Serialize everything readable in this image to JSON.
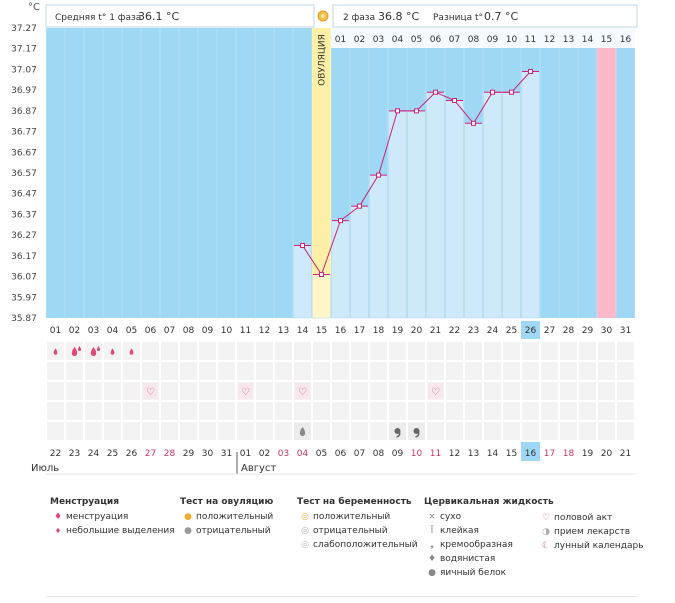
{
  "axis": {
    "unit": "°C",
    "y_ticks": [
      "37.27",
      "37.17",
      "37.07",
      "36.97",
      "36.87",
      "36.77",
      "36.67",
      "36.57",
      "36.47",
      "36.37",
      "36.27",
      "36.17",
      "36.07",
      "35.97",
      "35.87"
    ]
  },
  "header": {
    "phase1_label": "Средняя t° 1 фаза",
    "phase1_value": "36.1 °C",
    "phase2_label": "2 фаза",
    "phase2_value": "36.8 °C",
    "diff_label": "Разница t°",
    "diff_value": "0.7 °C"
  },
  "ovulation_label": "ОВУЛЯЦИЯ",
  "cycle_days": [
    "01",
    "02",
    "03",
    "04",
    "05",
    "06",
    "07",
    "08",
    "09",
    "10",
    "11",
    "12",
    "13",
    "14",
    "15",
    "16"
  ],
  "days": [
    "01",
    "02",
    "03",
    "04",
    "05",
    "06",
    "07",
    "08",
    "09",
    "10",
    "11",
    "12",
    "13",
    "14",
    "15",
    "16",
    "17",
    "18",
    "19",
    "20",
    "21",
    "22",
    "23",
    "24",
    "25",
    "26",
    "27",
    "28",
    "29",
    "30",
    "31"
  ],
  "today_index": 25,
  "dates": [
    {
      "d": "22",
      "c": "#333333"
    },
    {
      "d": "23",
      "c": "#333333"
    },
    {
      "d": "24",
      "c": "#333333"
    },
    {
      "d": "25",
      "c": "#333333"
    },
    {
      "d": "26",
      "c": "#333333"
    },
    {
      "d": "27",
      "c": "#cc3366"
    },
    {
      "d": "28",
      "c": "#cc3366"
    },
    {
      "d": "29",
      "c": "#333333"
    },
    {
      "d": "30",
      "c": "#333333"
    },
    {
      "d": "31",
      "c": "#333333"
    },
    {
      "d": "01",
      "c": "#333333"
    },
    {
      "d": "02",
      "c": "#333333"
    },
    {
      "d": "03",
      "c": "#cc3366"
    },
    {
      "d": "04",
      "c": "#cc3366"
    },
    {
      "d": "05",
      "c": "#333333"
    },
    {
      "d": "06",
      "c": "#333333"
    },
    {
      "d": "07",
      "c": "#333333"
    },
    {
      "d": "08",
      "c": "#333333"
    },
    {
      "d": "09",
      "c": "#333333"
    },
    {
      "d": "10",
      "c": "#cc3366"
    },
    {
      "d": "11",
      "c": "#cc3366"
    },
    {
      "d": "12",
      "c": "#333333"
    },
    {
      "d": "13",
      "c": "#333333"
    },
    {
      "d": "14",
      "c": "#333333"
    },
    {
      "d": "15",
      "c": "#333333"
    },
    {
      "d": "16",
      "c": "#333333"
    },
    {
      "d": "17",
      "c": "#cc3366"
    },
    {
      "d": "18",
      "c": "#cc3366"
    },
    {
      "d": "19",
      "c": "#333333"
    },
    {
      "d": "20",
      "c": "#333333"
    },
    {
      "d": "21",
      "c": "#333333"
    }
  ],
  "months": {
    "first": "Июль",
    "second": "Август"
  },
  "chart_data": {
    "type": "line",
    "ylabel": "°C",
    "ylim": [
      35.87,
      37.27
    ],
    "x": [
      14,
      15,
      16,
      17,
      18,
      19,
      20,
      21,
      22,
      23,
      24,
      25,
      26
    ],
    "values": [
      36.22,
      36.08,
      36.34,
      36.41,
      36.56,
      36.87,
      36.87,
      36.96,
      36.92,
      36.81,
      36.96,
      36.96,
      37.06
    ],
    "ovulation_day": 15,
    "period_day": 30
  },
  "marks": {
    "menstruation": [
      {
        "day": 1,
        "kind": "small"
      },
      {
        "day": 2,
        "kind": "heavy"
      },
      {
        "day": 3,
        "kind": "heavy"
      },
      {
        "day": 4,
        "kind": "small"
      },
      {
        "day": 5,
        "kind": "small"
      }
    ],
    "intercourse_days": [
      6,
      11,
      14,
      21
    ],
    "fluid": [
      {
        "day": 14,
        "kind": "water"
      },
      {
        "day": 19,
        "kind": "cream"
      },
      {
        "day": 20,
        "kind": "cream"
      }
    ]
  },
  "legend": {
    "menstruation": {
      "title": "Менструация",
      "items": [
        "менструация",
        "небольшие выделения"
      ]
    },
    "ovulation_test": {
      "title": "Тест на овуляцию",
      "items": [
        "положительный",
        "отрицательный"
      ]
    },
    "pregnancy_test": {
      "title": "Тест на беременность",
      "items": [
        "положительный",
        "отрицательный",
        "слабоположительный"
      ]
    },
    "cervical_fluid": {
      "title": "Цервикальная жидкость",
      "items": [
        "сухо",
        "клейкая",
        "кремообразная",
        "водянистая",
        "яичный белок"
      ]
    },
    "other": {
      "items": [
        "половой акт",
        "прием лекарств",
        "лунный календарь"
      ]
    }
  },
  "colors": {
    "chart_bg": "#9fd8f4",
    "bar": "#cde9fa",
    "bar_border": "#a9d3ee",
    "line": "#cc2277",
    "ovulation": "#fdf0a6",
    "period": "#fbb8c8",
    "today": "#9fd8f4",
    "grid_row": "#f3f3f3"
  }
}
